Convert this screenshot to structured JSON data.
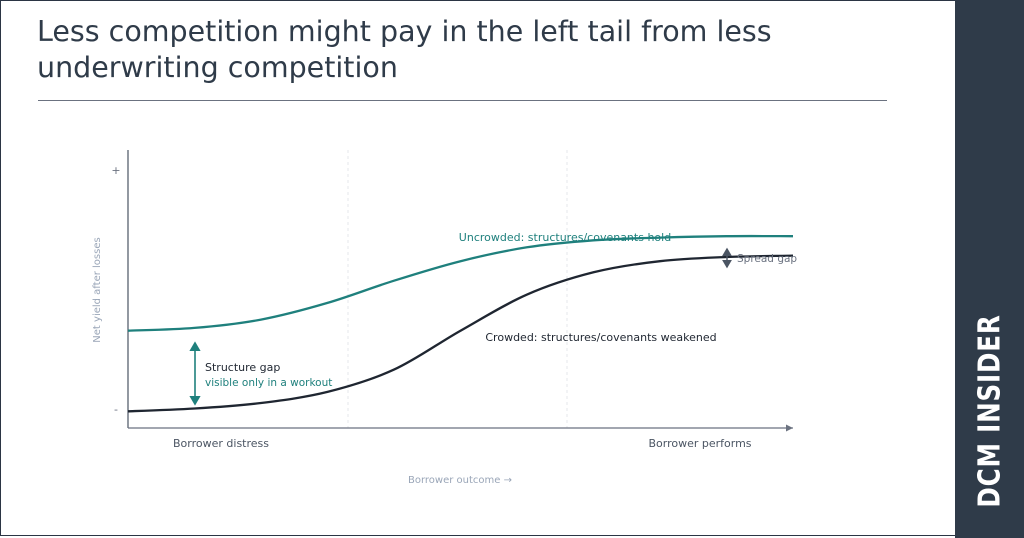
{
  "title": "Less competition might pay in the left tail from less underwriting competition",
  "brand": "DCM INSIDER",
  "colors": {
    "uncrowded": "#1f807d",
    "crowded": "#1f2631",
    "axis": "#4b5563",
    "sidebar": "#2f3b49",
    "grid": "#e5e7eb"
  },
  "chart_data": {
    "type": "line",
    "xlabel": "Borrower outcome →",
    "ylabel": "Net yield after losses",
    "yticks": [
      "+",
      "-"
    ],
    "x_categories": [
      "Borrower distress",
      "Borrower performs"
    ],
    "grid": "vertical dashed",
    "series": [
      {
        "name": "Uncrowded: structures/covenants hold",
        "color": "#1f807d",
        "x": [
          0,
          0.1,
          0.2,
          0.3,
          0.4,
          0.5,
          0.6,
          0.7,
          0.8,
          0.9,
          1.0
        ],
        "y": [
          0.35,
          0.36,
          0.39,
          0.45,
          0.53,
          0.6,
          0.65,
          0.675,
          0.685,
          0.69,
          0.69
        ]
      },
      {
        "name": "Crowded: structures/covenants weakened",
        "color": "#1f2631",
        "x": [
          0,
          0.1,
          0.2,
          0.3,
          0.4,
          0.5,
          0.6,
          0.7,
          0.8,
          0.9,
          1.0
        ],
        "y": [
          0.06,
          0.07,
          0.09,
          0.13,
          0.21,
          0.35,
          0.48,
          0.56,
          0.6,
          0.615,
          0.62
        ]
      }
    ],
    "annotations": [
      {
        "label": "Structure gap",
        "sublabel": "visible only in a workout"
      },
      {
        "label": "Spread gap"
      }
    ]
  }
}
